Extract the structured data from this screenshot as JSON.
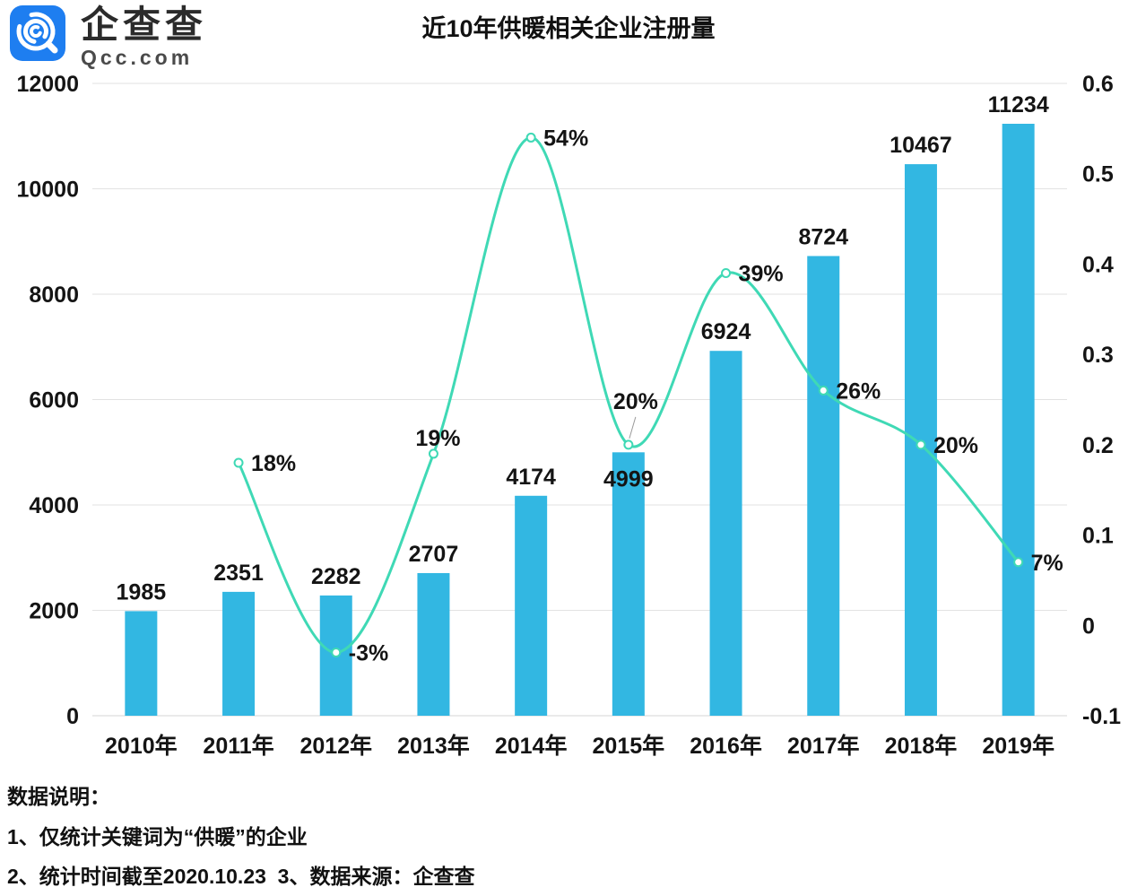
{
  "logo": {
    "brand_cn": "企查查",
    "brand_domain": "Qcc.com",
    "icon_color": "#1E7EF0"
  },
  "chart_data": {
    "type": "bar+line",
    "title": "近10年供暖相关企业注册量",
    "categories": [
      "2010年",
      "2011年",
      "2012年",
      "2013年",
      "2014年",
      "2015年",
      "2016年",
      "2017年",
      "2018年",
      "2019年"
    ],
    "bar_series": {
      "axis": "left",
      "values": [
        1985,
        2351,
        2282,
        2707,
        4174,
        4999,
        6924,
        8724,
        10467,
        11234
      ],
      "labels": [
        "1985",
        "2351",
        "2282",
        "2707",
        "4174",
        "4999",
        "6924",
        "8724",
        "10467",
        "11234"
      ],
      "color": "#32B7E2"
    },
    "line_series": {
      "axis": "right",
      "start_category_index": 1,
      "values": [
        0.18,
        -0.03,
        0.19,
        0.54,
        0.2,
        0.39,
        0.26,
        0.2,
        0.07
      ],
      "labels": [
        "18%",
        "-3%",
        "19%",
        "54%",
        "20%",
        "39%",
        "26%",
        "20%",
        "7%"
      ],
      "color": "#3FD9B5",
      "marker": "open-circle"
    },
    "left_axis": {
      "min": 0,
      "max": 12000,
      "ticks": [
        "12000",
        "10000",
        "8000",
        "6000",
        "4000",
        "2000",
        "0"
      ]
    },
    "right_axis": {
      "min": -0.1,
      "max": 0.6,
      "ticks": [
        "0.6",
        "0.5",
        "0.4",
        "0.3",
        "0.2",
        "0.1",
        "0",
        "-0.1"
      ]
    },
    "grid": {
      "show": true,
      "color": "#E2E2E2"
    },
    "legend_position": "none"
  },
  "footer": {
    "heading": "数据说明：",
    "note1": "1、仅统计关键词为“供暖”的企业",
    "note2": "2、统计时间截至2020.10.23  3、数据来源：企查查"
  }
}
